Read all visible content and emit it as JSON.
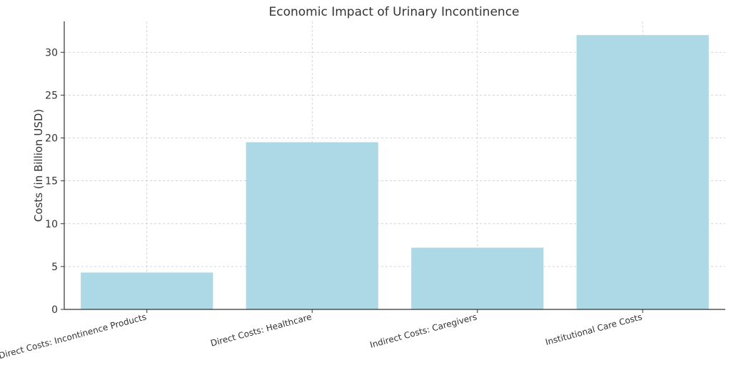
{
  "chart_data": {
    "type": "bar",
    "title": "Economic Impact of Urinary Incontinence",
    "xlabel": "",
    "ylabel": "Costs (in Billion USD)",
    "categories": [
      "Direct Costs: Incontinence Products",
      "Direct Costs: Healthcare",
      "Indirect Costs: Caregivers",
      "Institutional Care Costs"
    ],
    "values": [
      4.3,
      19.5,
      7.2,
      32.0
    ],
    "ylim": [
      0,
      33.6
    ],
    "yticks": [
      0,
      5,
      10,
      15,
      20,
      25,
      30
    ],
    "grid": true,
    "bar_color": "#add8e6"
  }
}
